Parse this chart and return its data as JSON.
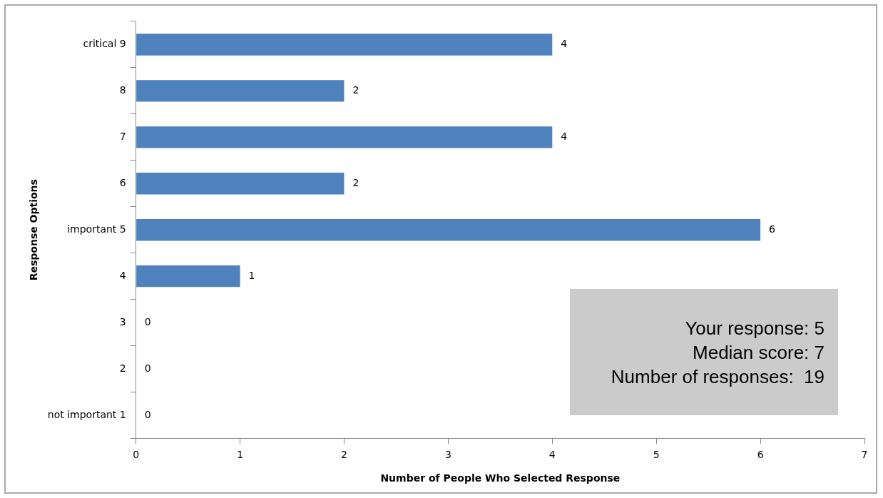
{
  "chart_data": {
    "type": "bar",
    "orientation": "horizontal",
    "xlabel": "Number of People Who Selected Response",
    "ylabel": "Response Options",
    "categories": [
      "critical 9",
      "8",
      "7",
      "6",
      "important 5",
      "4",
      "3",
      "2",
      "not important 1"
    ],
    "values": [
      4,
      2,
      4,
      2,
      6,
      1,
      0,
      0,
      0
    ],
    "color": "#4f81bd",
    "xlim": [
      0,
      7
    ],
    "xticks": [
      0,
      1,
      2,
      3,
      4,
      5,
      6,
      7
    ],
    "grid": false,
    "legend": false,
    "data_labels": true,
    "annotations": [
      "Your response: 5",
      "Median score: 7",
      "Number of responses:  19"
    ]
  }
}
